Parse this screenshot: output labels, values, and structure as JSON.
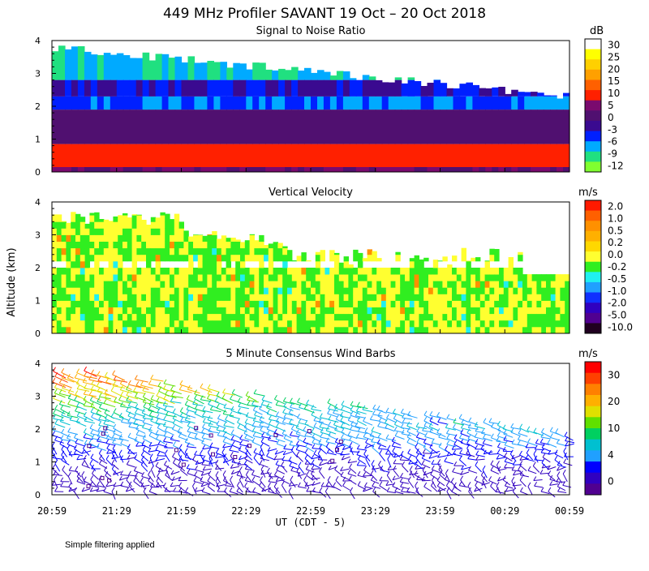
{
  "title": "449 MHz Profiler SAVANT 19 Oct – 20 Oct 2018",
  "ylabel": "Altitude (km)",
  "xlabel": "UT  (CDT - 5)",
  "footnote": "Simple filtering applied",
  "chart_data": [
    {
      "type": "heatmap",
      "title": "Signal to Noise Ratio",
      "units": "dB",
      "xlabel": "UT  (CDT - 5)",
      "ylabel": "Altitude (km)",
      "x_ticks": [
        "20:59",
        "21:29",
        "21:59",
        "22:29",
        "22:59",
        "23:29",
        "23:59",
        "00:29",
        "00:59"
      ],
      "y_ticks": [
        "0",
        "1",
        "2",
        "3",
        "4"
      ],
      "ylim": [
        0,
        4
      ],
      "colorbar": {
        "labels": [
          "30",
          "25",
          "20",
          "15",
          "10",
          "5",
          "0",
          "-3",
          "-6",
          "-9",
          "-12"
        ],
        "colors": [
          "#ffffff",
          "#ffff00",
          "#ffd000",
          "#ffa000",
          "#ff6000",
          "#ff2000",
          "#7a0a6e",
          "#501070",
          "#3a0a90",
          "#0020ff",
          "#00aaff",
          "#20e080",
          "#80ff30"
        ]
      },
      "bands_km": [
        {
          "from": 0.0,
          "to": 0.15,
          "dB": 5
        },
        {
          "from": 0.15,
          "to": 0.85,
          "dB": 12
        },
        {
          "from": 0.85,
          "to": 1.9,
          "dB": 2
        },
        {
          "from": 1.9,
          "to": 2.3,
          "dB": -6
        },
        {
          "from": 2.3,
          "to": 2.8,
          "dB": -3
        },
        {
          "from": 2.8,
          "to": 3.8,
          "dB": -9
        }
      ]
    },
    {
      "type": "heatmap",
      "title": "Vertical Velocity",
      "units": "m/s",
      "xlabel": "UT  (CDT - 5)",
      "ylabel": "Altitude (km)",
      "x_ticks": [
        "20:59",
        "21:29",
        "21:59",
        "22:29",
        "22:59",
        "23:29",
        "23:59",
        "00:29",
        "00:59"
      ],
      "y_ticks": [
        "0",
        "1",
        "2",
        "3",
        "4"
      ],
      "ylim": [
        0,
        4
      ],
      "colorbar": {
        "labels": [
          "2.0",
          "1.0",
          "0.5",
          "0.2",
          "0.0",
          "-0.2",
          "-0.5",
          "-1.0",
          "-2.0",
          "-5.0",
          "-10.0"
        ],
        "colors": [
          "#ff1a00",
          "#ff6000",
          "#ff9000",
          "#ffb000",
          "#ffd800",
          "#ffff30",
          "#30ee20",
          "#20f0f0",
          "#20a0ff",
          "#1030ff",
          "#3000c0",
          "#500090",
          "#200020"
        ]
      },
      "dominant_values_m_s": [
        0.0,
        -0.2
      ]
    },
    {
      "type": "scatter",
      "title": "5 Minute Consensus Wind Barbs",
      "units": "m/s",
      "xlabel": "UT  (CDT - 5)",
      "ylabel": "Altitude (km)",
      "x_ticks": [
        "20:59",
        "21:29",
        "21:59",
        "22:29",
        "22:59",
        "23:29",
        "23:59",
        "00:29",
        "00:59"
      ],
      "y_ticks": [
        "0",
        "1",
        "2",
        "3",
        "4"
      ],
      "ylim": [
        0,
        4
      ],
      "colorbar": {
        "labels": [
          "30",
          "20",
          "10",
          "4",
          "0"
        ],
        "colors": [
          "#ff0000",
          "#ff4000",
          "#ff8000",
          "#ffb000",
          "#e0e000",
          "#60e000",
          "#00d060",
          "#00c0d0",
          "#20a0ff",
          "#0000ff",
          "#3000c0",
          "#500090"
        ]
      },
      "speed_profile_m_s": [
        {
          "km": 0.5,
          "speed": 3
        },
        {
          "km": 1.2,
          "speed": 5
        },
        {
          "km": 1.9,
          "speed": 9
        },
        {
          "km": 2.6,
          "speed": 14
        },
        {
          "km": 3.2,
          "speed": 22
        },
        {
          "km": 3.8,
          "speed": 30
        }
      ]
    }
  ]
}
